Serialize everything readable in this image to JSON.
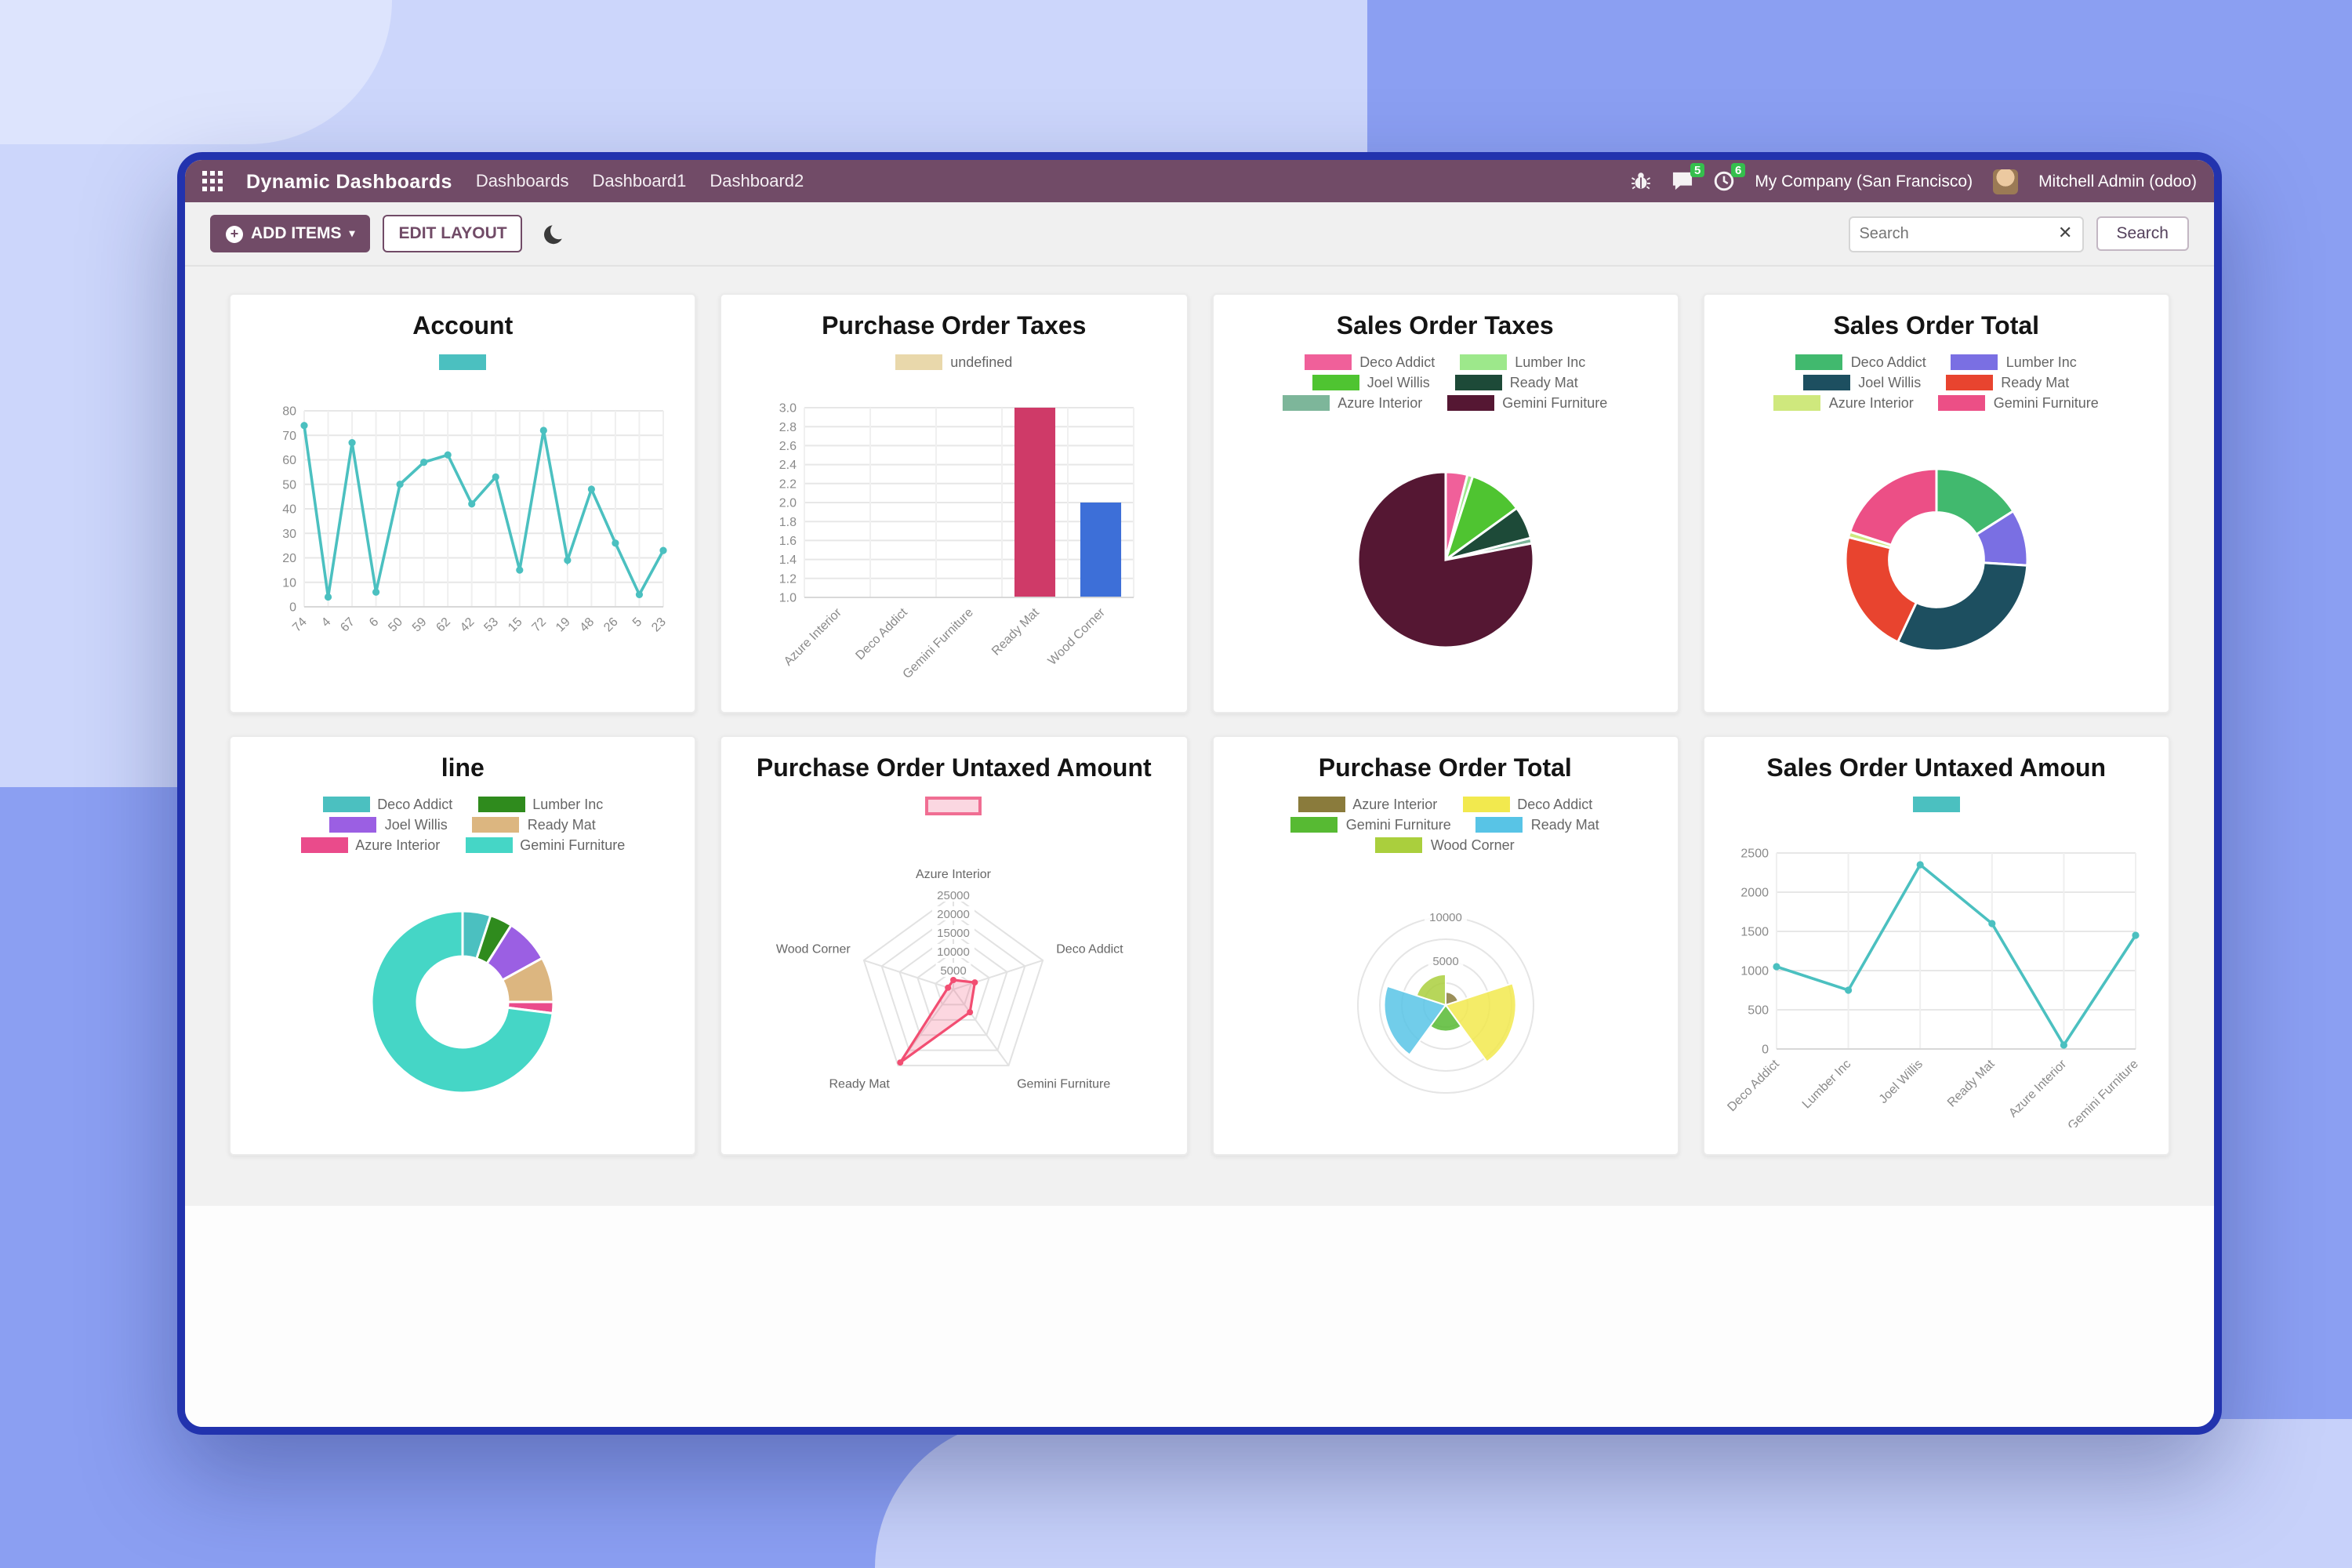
{
  "colors": {
    "navbar-bg": "#714B67",
    "accent": "#714B67",
    "window-border": "#2233ae",
    "badge-green": "#35bf4d"
  },
  "navbar": {
    "app_title": "Dynamic Dashboards",
    "menu": [
      "Dashboards",
      "Dashboard1",
      "Dashboard2"
    ],
    "messages_badge": "5",
    "activities_badge": "6",
    "company": "My Company (San Francisco)",
    "user": "Mitchell Admin (odoo)"
  },
  "toolbar": {
    "add_items_label": "ADD ITEMS",
    "edit_layout_label": "EDIT LAYOUT",
    "search_placeholder": "Search",
    "search_button_label": "Search"
  },
  "cards": [
    {
      "title": "Account",
      "type": "line",
      "legend": [
        {
          "label": "",
          "color": "#4bc0c0"
        }
      ],
      "labels": [
        "74",
        "4",
        "67",
        "6",
        "50",
        "59",
        "62",
        "42",
        "53",
        "15",
        "72",
        "19",
        "48",
        "26",
        "5",
        "23"
      ],
      "values": [
        74,
        4,
        67,
        6,
        50,
        59,
        62,
        42,
        53,
        15,
        72,
        19,
        48,
        26,
        5,
        23
      ],
      "ymin": 0,
      "ymax": 80,
      "ystep": 10,
      "ydec": 0,
      "color": "#4bc0c0"
    },
    {
      "title": "Purchase Order Taxes",
      "type": "bar",
      "legend": [
        {
          "label": "undefined",
          "color": "#e9d8ab"
        }
      ],
      "labels": [
        "Azure Interior",
        "Deco Addict",
        "Gemini Furniture",
        "Ready Mat",
        "Wood Corner"
      ],
      "values": [
        0,
        0,
        0,
        3.0,
        2.0
      ],
      "colors": [
        "#e9d8ab",
        "#e9d8ab",
        "#e9d8ab",
        "#cf3a68",
        "#3d6fd8"
      ],
      "ymin": 1.0,
      "ymax": 3.0,
      "ystep": 0.2,
      "ydec": 1
    },
    {
      "title": "Sales Order Taxes",
      "type": "pie",
      "legend": [
        {
          "label": "Deco Addict",
          "color": "#f0609a"
        },
        {
          "label": "Lumber Inc",
          "color": "#9de88b"
        },
        {
          "label": "Joel Willis",
          "color": "#4fc431"
        },
        {
          "label": "Ready Mat",
          "color": "#1d4a38"
        },
        {
          "label": "Azure Interior",
          "color": "#7db69a"
        },
        {
          "label": "Gemini Furniture",
          "color": "#551733"
        }
      ],
      "values": [
        4,
        1,
        10,
        6,
        1,
        78
      ]
    },
    {
      "title": "Sales Order Total",
      "type": "doughnut",
      "legend": [
        {
          "label": "Deco Addict",
          "color": "#41b96e"
        },
        {
          "label": "Lumber Inc",
          "color": "#7a6fe3"
        },
        {
          "label": "Joel Willis",
          "color": "#1d4f60"
        },
        {
          "label": "Ready Mat",
          "color": "#e8442f"
        },
        {
          "label": "Azure Interior",
          "color": "#cfe87d"
        },
        {
          "label": "Gemini Furniture",
          "color": "#ec4f86"
        }
      ],
      "values": [
        16,
        10,
        31,
        22,
        1,
        20
      ],
      "inner": 0.52
    },
    {
      "title": "line",
      "type": "doughnut",
      "legend": [
        {
          "label": "Deco Addict",
          "color": "#4bc0c0"
        },
        {
          "label": "Lumber Inc",
          "color": "#2f8b1d"
        },
        {
          "label": "Joel Willis",
          "color": "#9b5fe3"
        },
        {
          "label": "Ready Mat",
          "color": "#dcb680"
        },
        {
          "label": "Azure Interior",
          "color": "#ea4b8b"
        },
        {
          "label": "Gemini Furniture",
          "color": "#45d6c6"
        }
      ],
      "values": [
        5,
        4,
        8,
        8,
        2,
        73
      ],
      "inner": 0.5
    },
    {
      "title": "Purchase Order Untaxed Amount",
      "type": "radar",
      "legend": [
        {
          "label": "",
          "color": "#fbd7e1",
          "outline": "#f06e93"
        }
      ],
      "axes": [
        "Azure Interior",
        "Deco Addict",
        "Gemini Furniture",
        "Ready Mat",
        "Wood Corner"
      ],
      "values": [
        2500,
        6000,
        7500,
        24000,
        1500
      ],
      "rings": [
        5000,
        10000,
        15000,
        20000,
        25000
      ],
      "max": 25000,
      "color": "#f24e72",
      "fill": "rgba(244,96,132,0.25)"
    },
    {
      "title": "Purchase Order Total",
      "type": "polar",
      "legend": [
        {
          "label": "Azure Interior",
          "color": "#8a7b3c"
        },
        {
          "label": "Deco Addict",
          "color": "#f2e94e"
        },
        {
          "label": "Gemini Furniture",
          "color": "#57ba33"
        },
        {
          "label": "Ready Mat",
          "color": "#58c4e6"
        },
        {
          "label": "Wood Corner",
          "color": "#aacf3d"
        }
      ],
      "values": [
        1500,
        8000,
        3000,
        7000,
        3500
      ],
      "rings": [
        5000,
        10000
      ],
      "ringStep": 2500,
      "max": 10000
    },
    {
      "title": "Sales Order Untaxed Amoun",
      "type": "line",
      "legend": [
        {
          "label": "",
          "color": "#4bc0c0"
        }
      ],
      "labels": [
        "Deco Addict",
        "Lumber Inc",
        "Joel Willis",
        "Ready Mat",
        "Azure Interior",
        "Gemini Furniture"
      ],
      "values": [
        1050,
        750,
        2350,
        1600,
        50,
        1450
      ],
      "ymin": 0,
      "ymax": 2500,
      "ystep": 500,
      "ydec": 0,
      "color": "#4bc0c0"
    }
  ]
}
